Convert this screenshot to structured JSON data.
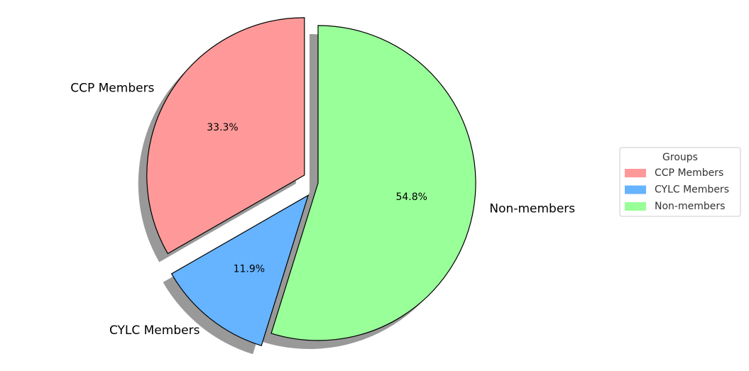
{
  "chart_data": {
    "type": "pie",
    "categories": [
      "CCP Members",
      "CYLC Members",
      "Non-members"
    ],
    "values": [
      33.3,
      11.9,
      54.8
    ],
    "value_labels": [
      "33.3%",
      "11.9%",
      "54.8%"
    ],
    "colors": [
      "#ff9999",
      "#66b3ff",
      "#99ff99"
    ],
    "explode": [
      0.1,
      0.1,
      0
    ],
    "startangle": 90,
    "shadow": true,
    "legend_title": "Groups",
    "legend": "right"
  }
}
